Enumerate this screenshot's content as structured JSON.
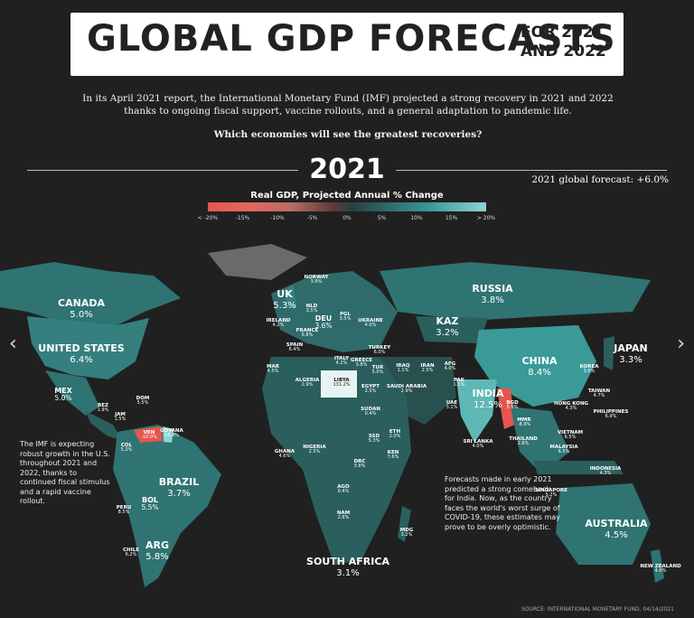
{
  "title": {
    "main": "GLOBAL GDP FORECASTS",
    "sub": "FOR 2021 AND 2022"
  },
  "intro": "In its April 2021 report, the International Monetary Fund (IMF) projected a strong recovery in 2021 and 2022 thanks to ongoing fiscal support, vaccine rollouts, and a general adaptation to pandemic life.",
  "question": "Which economies will see the greatest recoveries?",
  "year": "2021",
  "global_forecast": "2021 global forecast: +6.0%",
  "legend": {
    "title": "Real GDP, Projected Annual % Change",
    "ticks": [
      "< -20%",
      "-15%",
      "-10%",
      "-5%",
      "0%",
      "5%",
      "10%",
      "15%",
      "> 20%"
    ],
    "colors": {
      "negative": "#e4564f",
      "low": "#27403f",
      "mid": "#2e6b6a",
      "high": "#3a9a98",
      "highest": "#8fd4d2"
    }
  },
  "countries": [
    {
      "name": "CANADA",
      "value": "5.0%"
    },
    {
      "name": "UNITED STATES",
      "value": "6.4%"
    },
    {
      "name": "MEX",
      "value": "5.0%"
    },
    {
      "name": "BEZ",
      "value": "1.9%"
    },
    {
      "name": "JAM",
      "value": "1.5%"
    },
    {
      "name": "DOM",
      "value": "5.5%"
    },
    {
      "name": "GUYANA",
      "value": "16.4%"
    },
    {
      "name": "VEN",
      "value": "-10.0%"
    },
    {
      "name": "COL",
      "value": "5.2%"
    },
    {
      "name": "BRAZIL",
      "value": "3.7%"
    },
    {
      "name": "BOL",
      "value": "5.5%"
    },
    {
      "name": "PERU",
      "value": "8.5%"
    },
    {
      "name": "CHILE",
      "value": "6.2%"
    },
    {
      "name": "ARG",
      "value": "5.8%"
    },
    {
      "name": "UK",
      "value": "5.3%"
    },
    {
      "name": "NORWAY",
      "value": "3.9%"
    },
    {
      "name": "IRELAND",
      "value": "4.2%"
    },
    {
      "name": "NLD",
      "value": "3.5%"
    },
    {
      "name": "DEU",
      "value": "3.6%"
    },
    {
      "name": "PGL",
      "value": "3.5%"
    },
    {
      "name": "UKRAINE",
      "value": "4.0%"
    },
    {
      "name": "FRANCE",
      "value": "5.8%"
    },
    {
      "name": "SPAIN",
      "value": "6.4%"
    },
    {
      "name": "ITALY",
      "value": "4.2%"
    },
    {
      "name": "GREECE",
      "value": "3.8%"
    },
    {
      "name": "TUR",
      "value": "5.0%"
    },
    {
      "name": "TURKEY",
      "value": "6.0%"
    },
    {
      "name": "MAR",
      "value": "4.5%"
    },
    {
      "name": "ALGERIA",
      "value": "2.9%"
    },
    {
      "name": "LIBYA",
      "value": "131.2%"
    },
    {
      "name": "EGYPT",
      "value": "2.5%"
    },
    {
      "name": "IRAQ",
      "value": "1.1%"
    },
    {
      "name": "IRAN",
      "value": "2.5%"
    },
    {
      "name": "SAUDI ARABIA",
      "value": "2.9%"
    },
    {
      "name": "AFG",
      "value": "4.0%"
    },
    {
      "name": "PAK",
      "value": "1.5%"
    },
    {
      "name": "UAE",
      "value": "3.1%"
    },
    {
      "name": "RUSSIA",
      "value": "3.8%"
    },
    {
      "name": "KAZ",
      "value": "3.2%"
    },
    {
      "name": "CHINA",
      "value": "8.4%"
    },
    {
      "name": "INDIA",
      "value": "12.5%"
    },
    {
      "name": "BGD",
      "value": "5.0%"
    },
    {
      "name": "MMR",
      "value": "-8.9%"
    },
    {
      "name": "SRI LANKA",
      "value": "4.0%"
    },
    {
      "name": "THAILAND",
      "value": "2.6%"
    },
    {
      "name": "MALAYSIA",
      "value": "6.5%"
    },
    {
      "name": "VIETNAM",
      "value": "6.5%"
    },
    {
      "name": "SINGAPORE",
      "value": "5.2%"
    },
    {
      "name": "HONG KONG",
      "value": "4.3%"
    },
    {
      "name": "KOREA",
      "value": "3.6%"
    },
    {
      "name": "JAPAN",
      "value": "3.3%"
    },
    {
      "name": "TAIWAN",
      "value": "4.7%"
    },
    {
      "name": "PHILIPPINES",
      "value": "6.9%"
    },
    {
      "name": "INDONESIA",
      "value": "4.3%"
    },
    {
      "name": "AUSTRALIA",
      "value": "4.5%"
    },
    {
      "name": "NEW ZEALAND",
      "value": "4.0%"
    },
    {
      "name": "SUDAN",
      "value": "0.4%"
    },
    {
      "name": "ETH",
      "value": "2.0%"
    },
    {
      "name": "SSD",
      "value": "5.3%"
    },
    {
      "name": "KEN",
      "value": "7.6%"
    },
    {
      "name": "GHANA",
      "value": "4.6%"
    },
    {
      "name": "NIGERIA",
      "value": "2.5%"
    },
    {
      "name": "DRC",
      "value": "3.8%"
    },
    {
      "name": "AGO",
      "value": "0.4%"
    },
    {
      "name": "NAM",
      "value": "2.6%"
    },
    {
      "name": "MDG",
      "value": "3.2%"
    },
    {
      "name": "SOUTH AFRICA",
      "value": "3.1%"
    }
  ],
  "notes": {
    "us": "The IMF is expecting robust growth in the U.S. throughout 2021 and 2022, thanks to continued fiscal stimulus and a rapid vaccine rollout.",
    "india": "Forecasts made in early 2021 predicted a strong comeback for India. Now, as the country faces the world's worst surge of COVID-19, these estimates may prove to be overly optimistic."
  },
  "source": "SOURCE: INTERNATIONAL MONETARY FUND, 04/14/2021",
  "nav": {
    "prev": "‹",
    "next": "›"
  }
}
